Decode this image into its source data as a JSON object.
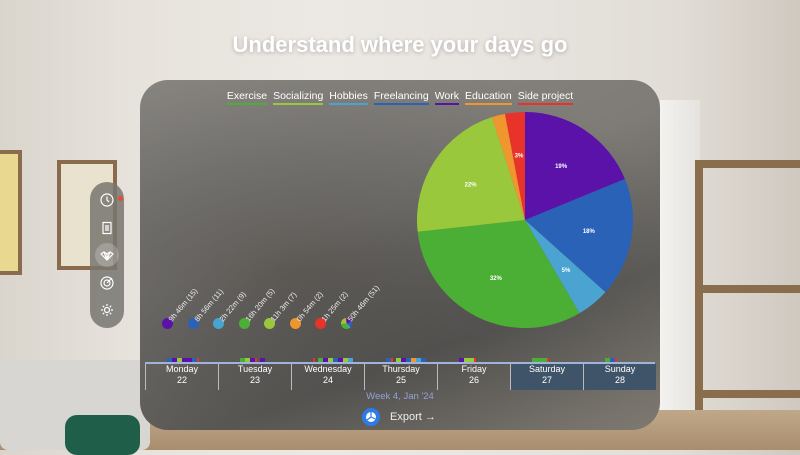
{
  "headline": "Understand where your days go",
  "legend": [
    {
      "label": "Exercise",
      "color": "#4caf35"
    },
    {
      "label": "Socializing",
      "color": "#9ac83c"
    },
    {
      "label": "Hobbies",
      "color": "#4aa3d0"
    },
    {
      "label": "Freelancing",
      "color": "#2a62b8"
    },
    {
      "label": "Work",
      "color": "#5a12a8"
    },
    {
      "label": "Education",
      "color": "#f0962f"
    },
    {
      "label": "Side project",
      "color": "#e8332a"
    }
  ],
  "chart_data": {
    "type": "pie",
    "slices": [
      {
        "category": "Work",
        "value": 19,
        "label": "19%",
        "color": "#5a12a8"
      },
      {
        "category": "Freelancing",
        "value": 18,
        "label": "18%",
        "color": "#2a62b8"
      },
      {
        "category": "Hobbies",
        "value": 5,
        "label": "5%",
        "color": "#4aa3d0"
      },
      {
        "category": "Exercise",
        "value": 32,
        "label": "32%",
        "color": "#4caf35"
      },
      {
        "category": "Socializing",
        "value": 22,
        "label": "22%",
        "color": "#9ac83c"
      },
      {
        "category": "Education",
        "value": 2,
        "label": "",
        "color": "#f0962f"
      },
      {
        "category": "Side project",
        "value": 3,
        "label": "3%",
        "color": "#e8332a"
      }
    ]
  },
  "stats": [
    {
      "category": "Work",
      "text": "9h 46m (15)",
      "color": "#5a12a8"
    },
    {
      "category": "Freelancing",
      "text": "8h 56m (11)",
      "color": "#2a62b8"
    },
    {
      "category": "Hobbies",
      "text": "2h 22m (9)",
      "color": "#4aa3d0"
    },
    {
      "category": "Exercise",
      "text": "16h 20m (5)",
      "color": "#4caf35"
    },
    {
      "category": "Socializing",
      "text": "11h 3m (7)",
      "color": "#9ac83c"
    },
    {
      "category": "Education",
      "text": "0h 54m (2)",
      "color": "#f0962f"
    },
    {
      "category": "Side project",
      "text": "1h 25m (2)",
      "color": "#e8332a"
    },
    {
      "category": "Total",
      "text": "50h 46m (51)",
      "color": "multi"
    }
  ],
  "days": [
    {
      "name": "Monday",
      "date": "22",
      "selected": false,
      "activity": [
        "#2a62b8",
        "#5a12a8",
        "#9ac83c",
        "#5a12a8",
        "#5a12a8",
        "#2a62b8",
        "#e8332a"
      ]
    },
    {
      "name": "Tuesday",
      "date": "23",
      "selected": false,
      "activity": [
        "#4caf35",
        "#9ac83c",
        "#5a12a8",
        "#e8332a",
        "#5a12a8"
      ]
    },
    {
      "name": "Wednesday",
      "date": "24",
      "selected": false,
      "activity": [
        "#e8332a",
        "#4caf35",
        "#5a12a8",
        "#9ac83c",
        "#2a62b8",
        "#5a12a8",
        "#9ac83c",
        "#4aa3d0"
      ]
    },
    {
      "name": "Thursday",
      "date": "25",
      "selected": false,
      "activity": [
        "#2a62b8",
        "#e8332a",
        "#9ac83c",
        "#5a12a8",
        "#2a62b8",
        "#f0962f",
        "#4aa3d0",
        "#2a62b8"
      ]
    },
    {
      "name": "Friday",
      "date": "26",
      "selected": false,
      "activity": [
        "#5a12a8",
        "#9ac83c",
        "#9ac83c",
        "#e8332a"
      ]
    },
    {
      "name": "Saturday",
      "date": "27",
      "selected": true,
      "activity": [
        "#4caf35",
        "#4caf35",
        "#4caf35",
        "#e8332a"
      ]
    },
    {
      "name": "Sunday",
      "date": "28",
      "selected": true,
      "activity": [
        "#4caf35",
        "#2a62b8",
        "#e8332a"
      ]
    }
  ],
  "week_label": "Week 4, Jan '24",
  "export_label": "Export →",
  "sidebar": [
    {
      "icon": "clock-icon",
      "badge": true,
      "active": false
    },
    {
      "icon": "list-icon",
      "badge": false,
      "active": false
    },
    {
      "icon": "lotus-icon",
      "badge": false,
      "active": true
    },
    {
      "icon": "target-icon",
      "badge": false,
      "active": false
    },
    {
      "icon": "gear-icon",
      "badge": false,
      "active": false
    }
  ]
}
